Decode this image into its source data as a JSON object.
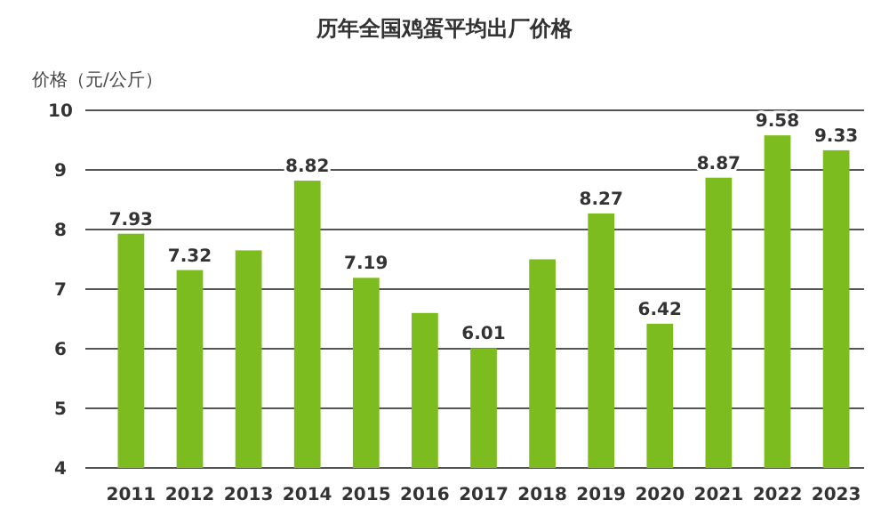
{
  "chart_data": {
    "type": "bar",
    "title": "历年全国鸡蛋平均出厂价格",
    "ylabel": "价格（元/公斤）",
    "categories": [
      "2011",
      "2012",
      "2013",
      "2014",
      "2015",
      "2016",
      "2017",
      "2018",
      "2019",
      "2020",
      "2021",
      "2022",
      "2023"
    ],
    "values": [
      7.93,
      7.32,
      7.65,
      8.82,
      7.19,
      6.6,
      6.01,
      7.5,
      8.27,
      6.42,
      8.87,
      9.58,
      9.33
    ],
    "value_labels": [
      "7.93",
      "7.32",
      null,
      "8.82",
      "7.19",
      null,
      "6.01",
      null,
      "8.27",
      "6.42",
      "8.87",
      "9.58",
      "9.33"
    ],
    "color": "#7cbc1e",
    "ylim": [
      4,
      10
    ],
    "yticks": [
      4,
      5,
      6,
      7,
      8,
      9,
      10
    ],
    "grid": "y"
  }
}
